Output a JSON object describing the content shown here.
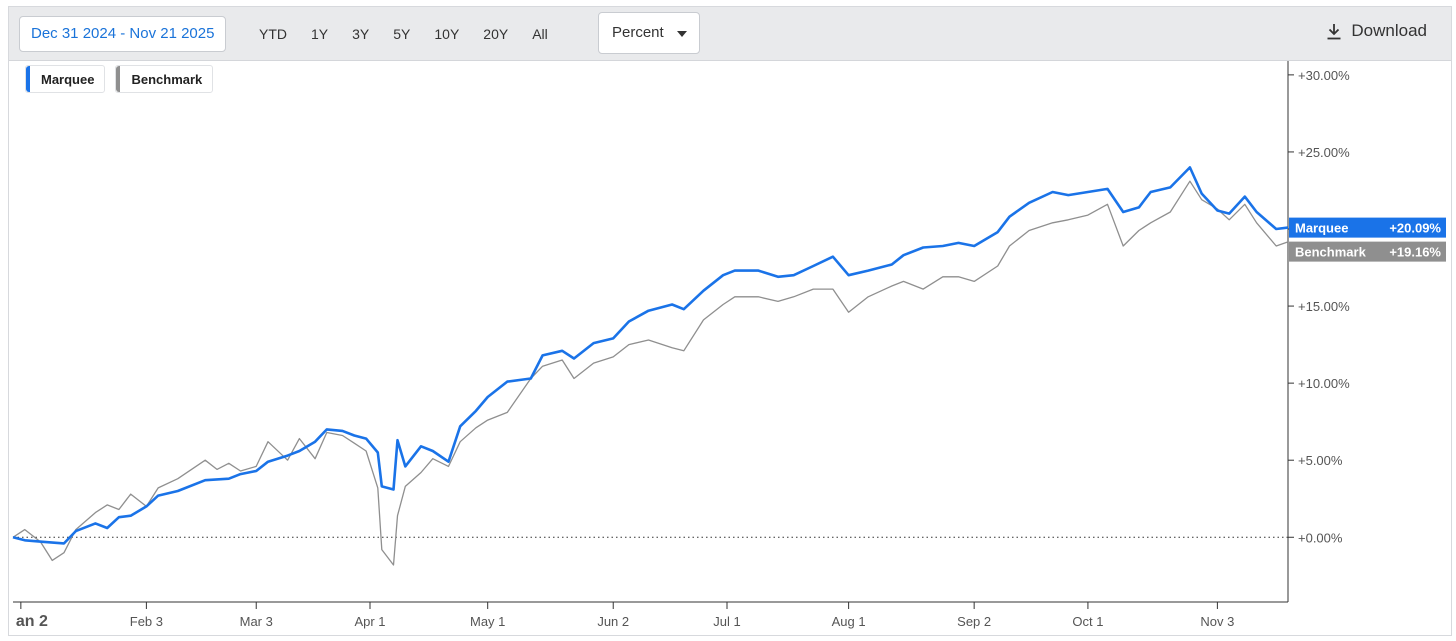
{
  "toolbar": {
    "date_range": "Dec 31 2024 - Nov 21 2025",
    "periods": [
      "YTD",
      "1Y",
      "3Y",
      "5Y",
      "10Y",
      "20Y",
      "All"
    ],
    "mode": "Percent",
    "download_label": "Download",
    "download_icon": "download-icon"
  },
  "legend": [
    {
      "name": "Marquee",
      "color": "#1a73e8"
    },
    {
      "name": "Benchmark",
      "color": "#8f8f8f"
    }
  ],
  "flags": [
    {
      "name": "Marquee",
      "value": "+20.09%",
      "color": "#1a73e8"
    },
    {
      "name": "Benchmark",
      "value": "+19.16%",
      "color": "#8f8f8f"
    }
  ],
  "chart_data": {
    "type": "line",
    "x_tick_labels": [
      "an 2",
      "Feb 3",
      "Mar 3",
      "Apr 1",
      "May 1",
      "Jun 2",
      "Jul 1",
      "Aug 1",
      "Sep 2",
      "Oct 1",
      "Nov 3"
    ],
    "x_ticks": [
      "2025-01-02",
      "2025-02-03",
      "2025-03-03",
      "2025-04-01",
      "2025-05-01",
      "2025-06-02",
      "2025-07-01",
      "2025-08-01",
      "2025-09-02",
      "2025-10-01",
      "2025-11-03"
    ],
    "x_range": [
      "2024-12-31",
      "2025-11-21"
    ],
    "y_tick_labels": [
      "+30.00%",
      "+25.00%",
      "+20.00%",
      "+15.00%",
      "+10.00%",
      "+5.00%",
      "+0.00%"
    ],
    "y_ticks": [
      30,
      25,
      20,
      15,
      10,
      5,
      0
    ],
    "ylim": [
      -4.2,
      30.9
    ],
    "y_axis_side": "right",
    "zero_line": "dotted",
    "series": [
      {
        "name": "Marquee",
        "color": "#1a73e8",
        "points": [
          [
            "2024-12-31",
            0.0
          ],
          [
            "2025-01-03",
            -0.2
          ],
          [
            "2025-01-08",
            -0.3
          ],
          [
            "2025-01-13",
            -0.4
          ],
          [
            "2025-01-16",
            0.4
          ],
          [
            "2025-01-21",
            0.9
          ],
          [
            "2025-01-24",
            0.6
          ],
          [
            "2025-01-27",
            1.3
          ],
          [
            "2025-01-30",
            1.4
          ],
          [
            "2025-02-03",
            2.0
          ],
          [
            "2025-02-06",
            2.7
          ],
          [
            "2025-02-11",
            3.0
          ],
          [
            "2025-02-18",
            3.7
          ],
          [
            "2025-02-24",
            3.8
          ],
          [
            "2025-02-27",
            4.1
          ],
          [
            "2025-03-03",
            4.3
          ],
          [
            "2025-03-06",
            4.9
          ],
          [
            "2025-03-11",
            5.3
          ],
          [
            "2025-03-14",
            5.6
          ],
          [
            "2025-03-18",
            6.2
          ],
          [
            "2025-03-21",
            7.0
          ],
          [
            "2025-03-25",
            6.9
          ],
          [
            "2025-03-28",
            6.6
          ],
          [
            "2025-03-31",
            6.4
          ],
          [
            "2025-04-03",
            5.5
          ],
          [
            "2025-04-04",
            3.3
          ],
          [
            "2025-04-07",
            3.1
          ],
          [
            "2025-04-08",
            6.3
          ],
          [
            "2025-04-10",
            4.6
          ],
          [
            "2025-04-14",
            5.9
          ],
          [
            "2025-04-17",
            5.6
          ],
          [
            "2025-04-21",
            4.9
          ],
          [
            "2025-04-24",
            7.2
          ],
          [
            "2025-04-28",
            8.2
          ],
          [
            "2025-05-01",
            9.1
          ],
          [
            "2025-05-06",
            10.1
          ],
          [
            "2025-05-12",
            10.3
          ],
          [
            "2025-05-15",
            11.8
          ],
          [
            "2025-05-20",
            12.1
          ],
          [
            "2025-05-23",
            11.6
          ],
          [
            "2025-05-28",
            12.6
          ],
          [
            "2025-06-02",
            12.9
          ],
          [
            "2025-06-06",
            14.0
          ],
          [
            "2025-06-11",
            14.7
          ],
          [
            "2025-06-17",
            15.1
          ],
          [
            "2025-06-20",
            14.8
          ],
          [
            "2025-06-25",
            16.0
          ],
          [
            "2025-06-30",
            17.0
          ],
          [
            "2025-07-03",
            17.3
          ],
          [
            "2025-07-09",
            17.3
          ],
          [
            "2025-07-14",
            16.9
          ],
          [
            "2025-07-18",
            17.0
          ],
          [
            "2025-07-23",
            17.6
          ],
          [
            "2025-07-28",
            18.2
          ],
          [
            "2025-08-01",
            17.0
          ],
          [
            "2025-08-06",
            17.3
          ],
          [
            "2025-08-12",
            17.7
          ],
          [
            "2025-08-15",
            18.3
          ],
          [
            "2025-08-20",
            18.8
          ],
          [
            "2025-08-25",
            18.9
          ],
          [
            "2025-08-29",
            19.1
          ],
          [
            "2025-09-02",
            18.9
          ],
          [
            "2025-09-08",
            19.8
          ],
          [
            "2025-09-11",
            20.8
          ],
          [
            "2025-09-16",
            21.7
          ],
          [
            "2025-09-22",
            22.4
          ],
          [
            "2025-09-26",
            22.2
          ],
          [
            "2025-10-01",
            22.4
          ],
          [
            "2025-10-06",
            22.6
          ],
          [
            "2025-10-10",
            21.1
          ],
          [
            "2025-10-14",
            21.4
          ],
          [
            "2025-10-17",
            22.4
          ],
          [
            "2025-10-22",
            22.7
          ],
          [
            "2025-10-27",
            24.0
          ],
          [
            "2025-10-30",
            22.3
          ],
          [
            "2025-11-03",
            21.2
          ],
          [
            "2025-11-06",
            21.0
          ],
          [
            "2025-11-10",
            22.1
          ],
          [
            "2025-11-13",
            21.1
          ],
          [
            "2025-11-18",
            20.0
          ],
          [
            "2025-11-21",
            20.09
          ]
        ]
      },
      {
        "name": "Benchmark",
        "color": "#8f8f8f",
        "points": [
          [
            "2024-12-31",
            0.0
          ],
          [
            "2025-01-03",
            0.5
          ],
          [
            "2025-01-07",
            -0.3
          ],
          [
            "2025-01-10",
            -1.5
          ],
          [
            "2025-01-13",
            -1.0
          ],
          [
            "2025-01-16",
            0.5
          ],
          [
            "2025-01-21",
            1.6
          ],
          [
            "2025-01-24",
            2.1
          ],
          [
            "2025-01-27",
            1.8
          ],
          [
            "2025-01-30",
            2.8
          ],
          [
            "2025-02-03",
            2.0
          ],
          [
            "2025-02-06",
            3.2
          ],
          [
            "2025-02-11",
            3.8
          ],
          [
            "2025-02-18",
            5.0
          ],
          [
            "2025-02-21",
            4.4
          ],
          [
            "2025-02-24",
            4.8
          ],
          [
            "2025-02-27",
            4.3
          ],
          [
            "2025-03-03",
            4.6
          ],
          [
            "2025-03-06",
            6.2
          ],
          [
            "2025-03-11",
            5.0
          ],
          [
            "2025-03-14",
            6.4
          ],
          [
            "2025-03-18",
            5.1
          ],
          [
            "2025-03-21",
            6.8
          ],
          [
            "2025-03-25",
            6.6
          ],
          [
            "2025-03-28",
            6.1
          ],
          [
            "2025-03-31",
            5.6
          ],
          [
            "2025-04-03",
            3.2
          ],
          [
            "2025-04-04",
            -0.8
          ],
          [
            "2025-04-07",
            -1.8
          ],
          [
            "2025-04-08",
            1.4
          ],
          [
            "2025-04-10",
            3.3
          ],
          [
            "2025-04-14",
            4.2
          ],
          [
            "2025-04-17",
            5.1
          ],
          [
            "2025-04-21",
            4.6
          ],
          [
            "2025-04-24",
            6.2
          ],
          [
            "2025-04-28",
            7.1
          ],
          [
            "2025-05-01",
            7.6
          ],
          [
            "2025-05-06",
            8.1
          ],
          [
            "2025-05-12",
            10.3
          ],
          [
            "2025-05-15",
            11.1
          ],
          [
            "2025-05-20",
            11.5
          ],
          [
            "2025-05-23",
            10.3
          ],
          [
            "2025-05-28",
            11.3
          ],
          [
            "2025-06-02",
            11.7
          ],
          [
            "2025-06-06",
            12.5
          ],
          [
            "2025-06-11",
            12.8
          ],
          [
            "2025-06-17",
            12.3
          ],
          [
            "2025-06-20",
            12.1
          ],
          [
            "2025-06-25",
            14.1
          ],
          [
            "2025-06-30",
            15.1
          ],
          [
            "2025-07-03",
            15.6
          ],
          [
            "2025-07-09",
            15.6
          ],
          [
            "2025-07-14",
            15.3
          ],
          [
            "2025-07-18",
            15.6
          ],
          [
            "2025-07-23",
            16.1
          ],
          [
            "2025-07-28",
            16.1
          ],
          [
            "2025-08-01",
            14.6
          ],
          [
            "2025-08-06",
            15.6
          ],
          [
            "2025-08-12",
            16.3
          ],
          [
            "2025-08-15",
            16.6
          ],
          [
            "2025-08-20",
            16.1
          ],
          [
            "2025-08-25",
            16.9
          ],
          [
            "2025-08-29",
            16.9
          ],
          [
            "2025-09-02",
            16.6
          ],
          [
            "2025-09-08",
            17.6
          ],
          [
            "2025-09-11",
            18.9
          ],
          [
            "2025-09-16",
            19.9
          ],
          [
            "2025-09-22",
            20.4
          ],
          [
            "2025-09-26",
            20.6
          ],
          [
            "2025-10-01",
            20.9
          ],
          [
            "2025-10-06",
            21.6
          ],
          [
            "2025-10-10",
            18.9
          ],
          [
            "2025-10-14",
            19.9
          ],
          [
            "2025-10-17",
            20.4
          ],
          [
            "2025-10-22",
            21.1
          ],
          [
            "2025-10-27",
            23.1
          ],
          [
            "2025-10-30",
            21.9
          ],
          [
            "2025-11-03",
            21.3
          ],
          [
            "2025-11-06",
            20.6
          ],
          [
            "2025-11-10",
            21.6
          ],
          [
            "2025-11-13",
            20.4
          ],
          [
            "2025-11-18",
            18.9
          ],
          [
            "2025-11-21",
            19.16
          ]
        ]
      }
    ]
  }
}
